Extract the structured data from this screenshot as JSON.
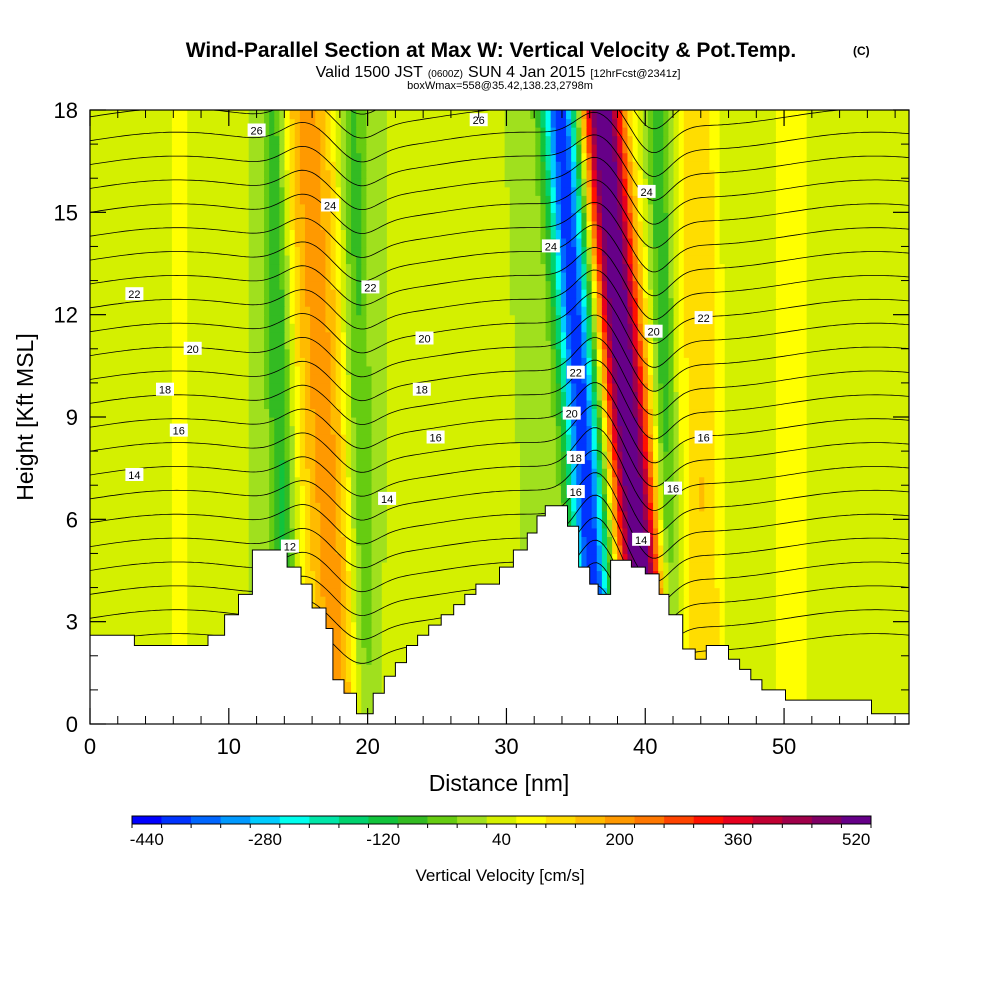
{
  "header": {
    "title": "Wind-Parallel Section at Max W: Vertical Velocity & Pot.Temp.",
    "copyright": "(C)",
    "valid_prefix": "Valid 1500 JST",
    "valid_utc": "(0600Z)",
    "valid_date": "SUN 4 Jan 2015",
    "forecast": "[12hrFcst@2341z]",
    "boxwmax": "boxWmax=558@35.42,138.23,2798m"
  },
  "chart_data": {
    "type": "heatmap",
    "title": "Wind-Parallel Section at Max W: Vertical Velocity & Pot.Temp.",
    "xlabel": "Distance [nm]",
    "ylabel": "Height [Kft MSL]",
    "xlim": [
      0,
      59
    ],
    "ylim": [
      0,
      18
    ],
    "x_ticks": [
      "0",
      "10",
      "20",
      "30",
      "40",
      "50"
    ],
    "y_ticks": [
      "0",
      "3",
      "6",
      "9",
      "12",
      "15",
      "18"
    ],
    "colorbar": {
      "label": "Vertical Velocity [cm/s]",
      "min": -460,
      "step": 40,
      "tick_labels": [
        "-440",
        "-280",
        "-120",
        "40",
        "200",
        "360",
        "520"
      ],
      "colors": [
        "#0000ff",
        "#0033ff",
        "#0066ff",
        "#0099ff",
        "#00ccff",
        "#00ffee",
        "#00e6a8",
        "#00d26e",
        "#11c33c",
        "#33bb22",
        "#66cc11",
        "#a0e01e",
        "#d4f000",
        "#ffff00",
        "#ffdd00",
        "#ffbb00",
        "#ff9900",
        "#ff7700",
        "#ff4400",
        "#ff1100",
        "#e6001e",
        "#c00032",
        "#a0004a",
        "#800064",
        "#660088"
      ]
    },
    "vertical_velocity_features": [
      {
        "x": 16.8,
        "slope": -0.13,
        "amplitude": 180,
        "width": 2.1
      },
      {
        "x": 13.7,
        "slope": -0.05,
        "amplitude": -140,
        "width": 0.9
      },
      {
        "x": 19.3,
        "slope": -0.05,
        "amplitude": -110,
        "width": 1.0
      },
      {
        "x": 35.4,
        "slope": -0.17,
        "amplitude": -440,
        "width": 1.3
      },
      {
        "x": 38.7,
        "slope": -0.2,
        "amplitude": 560,
        "width": 1.5
      },
      {
        "x": 41.4,
        "slope": -0.05,
        "amplitude": -120,
        "width": 0.8
      },
      {
        "x": 44.0,
        "slope": -0.03,
        "amplitude": 120,
        "width": 1.6
      },
      {
        "x": 6.5,
        "slope": 0.0,
        "amplitude": 45,
        "width": 1.4
      },
      {
        "x": 25.5,
        "slope": 0.0,
        "amplitude": 40,
        "width": 1.6
      },
      {
        "x": 50.5,
        "slope": 0.0,
        "amplitude": 50,
        "width": 2.0
      }
    ],
    "potential_temperature_levels": [
      12,
      14,
      16,
      18,
      20,
      22,
      24,
      26
    ],
    "potential_temperature_labels": [
      {
        "text": "26",
        "x": 12,
        "y": 17.4
      },
      {
        "text": "26",
        "x": 28,
        "y": 17.7
      },
      {
        "text": "24",
        "x": 17.3,
        "y": 15.2
      },
      {
        "text": "24",
        "x": 40.1,
        "y": 15.6
      },
      {
        "text": "24",
        "x": 33.2,
        "y": 14.0
      },
      {
        "text": "22",
        "x": 3.2,
        "y": 12.6
      },
      {
        "text": "22",
        "x": 20.2,
        "y": 12.8
      },
      {
        "text": "22",
        "x": 44.2,
        "y": 11.9
      },
      {
        "text": "20",
        "x": 7.4,
        "y": 11.0
      },
      {
        "text": "20",
        "x": 24.1,
        "y": 11.3
      },
      {
        "text": "20",
        "x": 40.6,
        "y": 11.5
      },
      {
        "text": "18",
        "x": 5.4,
        "y": 9.8
      },
      {
        "text": "18",
        "x": 23.9,
        "y": 9.8
      },
      {
        "text": "16",
        "x": 6.4,
        "y": 8.6
      },
      {
        "text": "16",
        "x": 24.9,
        "y": 8.4
      },
      {
        "text": "16",
        "x": 44.2,
        "y": 8.4
      },
      {
        "text": "22",
        "x": 35.0,
        "y": 10.3
      },
      {
        "text": "20",
        "x": 34.7,
        "y": 9.1
      },
      {
        "text": "18",
        "x": 35.0,
        "y": 7.8
      },
      {
        "text": "16",
        "x": 35.0,
        "y": 6.8
      },
      {
        "text": "16",
        "x": 42.0,
        "y": 6.9
      },
      {
        "text": "14",
        "x": 3.2,
        "y": 7.3
      },
      {
        "text": "14",
        "x": 21.4,
        "y": 6.6
      },
      {
        "text": "14",
        "x": 39.7,
        "y": 5.4
      },
      {
        "text": "12",
        "x": 14.4,
        "y": 5.2
      }
    ],
    "terrain_profile": [
      [
        0,
        2.6
      ],
      [
        3.2,
        2.6
      ],
      [
        3.2,
        2.3
      ],
      [
        8.5,
        2.3
      ],
      [
        8.5,
        2.6
      ],
      [
        9.7,
        2.6
      ],
      [
        9.7,
        3.2
      ],
      [
        10.7,
        3.2
      ],
      [
        10.7,
        3.8
      ],
      [
        11.7,
        3.8
      ],
      [
        11.7,
        5.1
      ],
      [
        14.2,
        5.1
      ],
      [
        14.2,
        4.6
      ],
      [
        15.2,
        4.6
      ],
      [
        15.2,
        4.1
      ],
      [
        16.0,
        4.1
      ],
      [
        16.0,
        3.4
      ],
      [
        17.0,
        3.4
      ],
      [
        17.0,
        2.8
      ],
      [
        17.5,
        2.8
      ],
      [
        17.5,
        1.3
      ],
      [
        18.3,
        1.3
      ],
      [
        18.3,
        0.9
      ],
      [
        19.2,
        0.9
      ],
      [
        19.2,
        0.3
      ],
      [
        20.4,
        0.3
      ],
      [
        20.4,
        0.9
      ],
      [
        21.2,
        0.9
      ],
      [
        21.2,
        1.4
      ],
      [
        22.0,
        1.4
      ],
      [
        22.0,
        1.8
      ],
      [
        22.8,
        1.8
      ],
      [
        22.8,
        2.3
      ],
      [
        23.6,
        2.3
      ],
      [
        23.6,
        2.6
      ],
      [
        24.4,
        2.6
      ],
      [
        24.4,
        2.9
      ],
      [
        25.3,
        2.9
      ],
      [
        25.3,
        3.2
      ],
      [
        26.2,
        3.2
      ],
      [
        26.2,
        3.5
      ],
      [
        27.0,
        3.5
      ],
      [
        27.0,
        3.8
      ],
      [
        27.8,
        3.8
      ],
      [
        27.8,
        4.1
      ],
      [
        29.5,
        4.1
      ],
      [
        29.5,
        4.6
      ],
      [
        30.5,
        4.6
      ],
      [
        30.5,
        5.1
      ],
      [
        31.5,
        5.1
      ],
      [
        31.5,
        5.6
      ],
      [
        32.2,
        5.6
      ],
      [
        32.2,
        6.1
      ],
      [
        32.8,
        6.1
      ],
      [
        32.8,
        6.4
      ],
      [
        34.4,
        6.4
      ],
      [
        34.4,
        5.8
      ],
      [
        35.2,
        5.8
      ],
      [
        35.2,
        4.6
      ],
      [
        36.0,
        4.6
      ],
      [
        36.0,
        4.1
      ],
      [
        36.6,
        4.1
      ],
      [
        36.6,
        3.8
      ],
      [
        37.5,
        3.8
      ],
      [
        37.5,
        4.8
      ],
      [
        39.0,
        4.8
      ],
      [
        39.0,
        4.6
      ],
      [
        40.0,
        4.6
      ],
      [
        40.0,
        4.4
      ],
      [
        41.0,
        4.4
      ],
      [
        41.0,
        3.8
      ],
      [
        41.7,
        3.8
      ],
      [
        41.7,
        3.2
      ],
      [
        42.7,
        3.2
      ],
      [
        42.7,
        2.2
      ],
      [
        43.6,
        2.2
      ],
      [
        43.6,
        1.9
      ],
      [
        44.4,
        1.9
      ],
      [
        44.4,
        2.3
      ],
      [
        46.0,
        2.3
      ],
      [
        46.0,
        1.9
      ],
      [
        46.8,
        1.9
      ],
      [
        46.8,
        1.6
      ],
      [
        47.6,
        1.6
      ],
      [
        47.6,
        1.3
      ],
      [
        48.4,
        1.3
      ],
      [
        48.4,
        1.0
      ],
      [
        50.1,
        1.0
      ],
      [
        50.1,
        0.7
      ],
      [
        56.3,
        0.7
      ],
      [
        56.3,
        0.3
      ],
      [
        59,
        0.3
      ]
    ]
  }
}
